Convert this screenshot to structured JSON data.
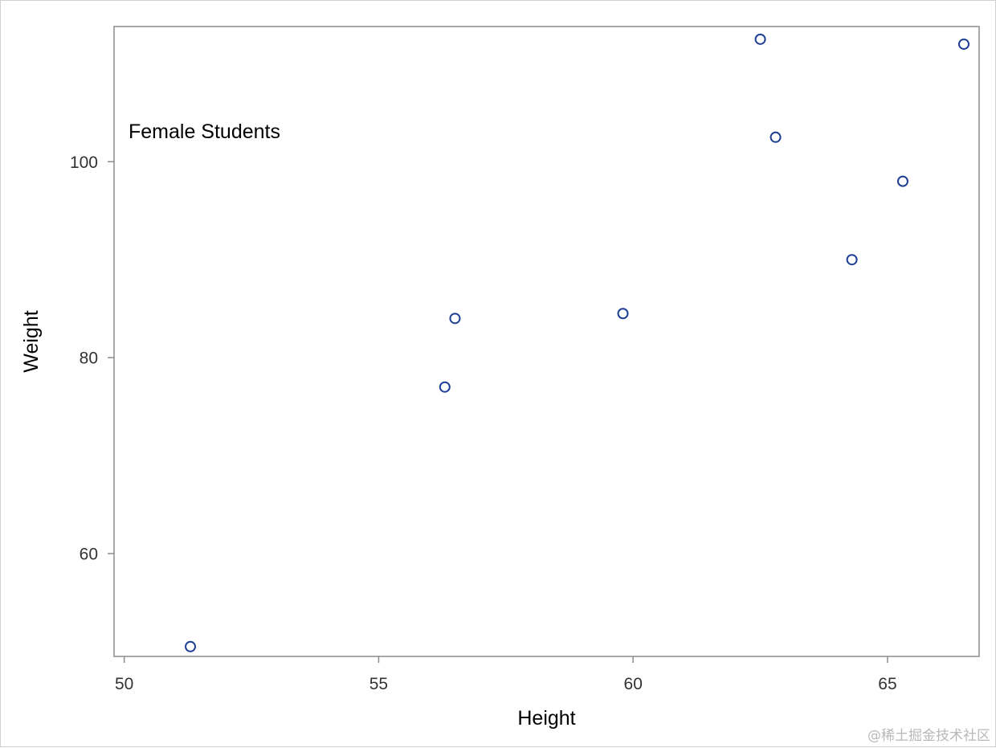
{
  "chart_data": {
    "type": "scatter",
    "inset_label": "Female Students",
    "xlabel": "Height",
    "ylabel": "Weight",
    "xlim": [
      49.8,
      66.8
    ],
    "ylim": [
      49.5,
      113.8
    ],
    "x_ticks": [
      50,
      55,
      60,
      65
    ],
    "y_ticks": [
      60,
      80,
      100
    ],
    "grid": false,
    "legend": "none",
    "marker": {
      "shape": "open-circle",
      "color": "#1f3f94"
    },
    "points": [
      {
        "x": 51.3,
        "y": 50.5
      },
      {
        "x": 56.3,
        "y": 77.0
      },
      {
        "x": 56.5,
        "y": 84.0
      },
      {
        "x": 59.8,
        "y": 84.5
      },
      {
        "x": 62.5,
        "y": 112.5
      },
      {
        "x": 62.8,
        "y": 102.5
      },
      {
        "x": 64.3,
        "y": 90.0
      },
      {
        "x": 65.3,
        "y": 98.0
      },
      {
        "x": 66.5,
        "y": 112.0
      }
    ]
  },
  "watermark": "@稀土掘金技术社区"
}
